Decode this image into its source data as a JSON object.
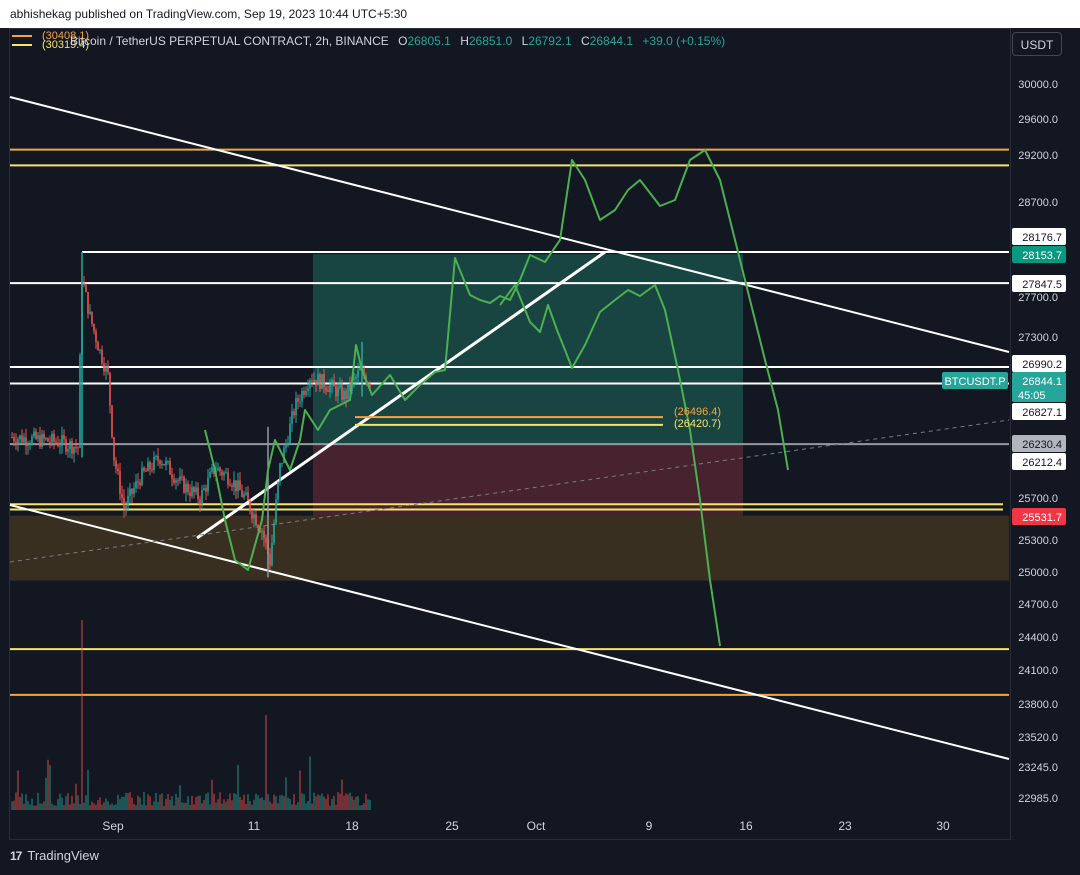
{
  "header": {
    "published": "abhishekag published on TradingView.com, Sep 19, 2023 10:44 UTC+5:30"
  },
  "legend": {
    "symbol": "Bitcoin / TetherUS PERPETUAL CONTRACT, 2h, BINANCE",
    "open_label": "O",
    "open": "26805.1",
    "high_label": "H",
    "high": "26851.0",
    "low_label": "L",
    "low": "26792.1",
    "close_label": "C",
    "close": "26844.1",
    "change": "+39.0 (+0.15%)",
    "mini_tag_1": "(30408.1)",
    "mini_tag_2": "(30319.4)"
  },
  "currency_button": "USDT",
  "footer": {
    "brand": "TradingView"
  },
  "colors": {
    "background": "#131722",
    "white_line": "#ffffff",
    "orange_line": "#f7a440",
    "yellow_line": "#f5e36b",
    "forecast": "#4caf50",
    "teal_zone": "#1e6b5c",
    "red_zone": "#6b2c38",
    "brown_zone": "#5a4420",
    "up_candle": "#26a69a",
    "down_candle": "#ef5350"
  },
  "chart_data": {
    "type": "line",
    "title": "Bitcoin / TetherUS PERPETUAL CONTRACT, 2h, BINANCE",
    "y_axis_ticks": [
      30000.0,
      29600.0,
      29200.0,
      28700.0,
      27700.0,
      27300.0,
      25700.0,
      25300.0,
      25000.0,
      24700.0,
      24400.0,
      24100.0,
      23800.0,
      23520.0,
      23245.0,
      22985.0
    ],
    "x_axis_ticks": [
      "Sep",
      "11",
      "18",
      "25",
      "Oct",
      "9",
      "16",
      "23",
      "30"
    ],
    "price_labels": [
      {
        "value": "28176.7",
        "style": "white"
      },
      {
        "value": "28153.7",
        "style": "green"
      },
      {
        "value": "27847.5",
        "style": "white"
      },
      {
        "value": "26990.2",
        "style": "white"
      },
      {
        "value": "26844.1",
        "style": "teal",
        "extra": "45:05",
        "symbol_tag": "BTCUSDT.P"
      },
      {
        "value": "26827.1",
        "style": "white"
      },
      {
        "value": "26230.4",
        "style": "gray"
      },
      {
        "value": "26212.4",
        "style": "white"
      },
      {
        "value": "25531.7",
        "style": "red"
      }
    ],
    "horizontal_levels": [
      {
        "price": 29260,
        "color": "orange"
      },
      {
        "price": 29090,
        "color": "yellow"
      },
      {
        "price": 28176.7,
        "color": "white"
      },
      {
        "price": 27847.5,
        "color": "white"
      },
      {
        "price": 26990.2,
        "color": "white"
      },
      {
        "price": 26827.1,
        "color": "white"
      },
      {
        "price": 26230.4,
        "color": "gray"
      },
      {
        "price": 25640,
        "color": "yellow"
      },
      {
        "price": 25590,
        "color": "yellow"
      },
      {
        "price": 24290,
        "color": "yellow"
      },
      {
        "price": 23880,
        "color": "orange"
      }
    ],
    "annotations": [
      {
        "text": "(26496.4)",
        "color": "orange"
      },
      {
        "text": "(26420.7)",
        "color": "yellow"
      }
    ]
  }
}
